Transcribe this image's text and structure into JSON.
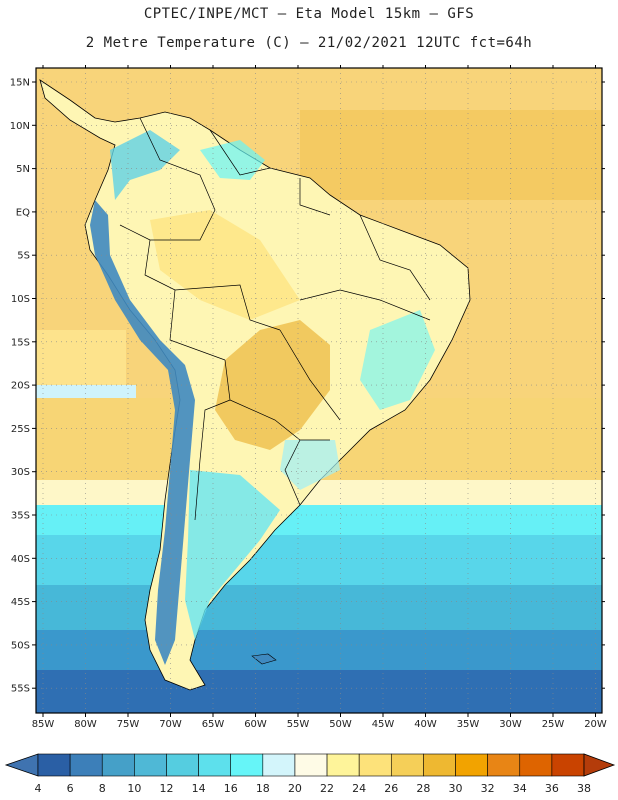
{
  "header": {
    "line1": "CPTEC/INPE/MCT –  Eta Model 15km – GFS",
    "line2": "2 Metre Temperature (C) – 21/02/2021 12UTC fct=64h"
  },
  "lat_labels": [
    "15N",
    "10N",
    "5N",
    "EQ",
    "5S",
    "10S",
    "15S",
    "20S",
    "25S",
    "30S",
    "35S",
    "40S",
    "45S",
    "50S",
    "55S"
  ],
  "lon_labels": [
    "85W",
    "80W",
    "75W",
    "70W",
    "65W",
    "60W",
    "55W",
    "50W",
    "45W",
    "40W",
    "35W",
    "30W",
    "25W",
    "20W"
  ],
  "colorbar": {
    "labels": [
      "4",
      "6",
      "8",
      "10",
      "12",
      "14",
      "16",
      "18",
      "20",
      "22",
      "24",
      "26",
      "28",
      "30",
      "32",
      "34",
      "36",
      "38"
    ],
    "colors": [
      "#2a5fa5",
      "#3c7fb9",
      "#45a0c8",
      "#4fb8d6",
      "#55cde0",
      "#5de0ec",
      "#66f5f8",
      "#d3f5fb",
      "#fefbe6",
      "#fef49a",
      "#fde27a",
      "#f5cf58",
      "#eeb831",
      "#f2a300",
      "#e88515",
      "#de6400",
      "#c94300"
    ],
    "low_color": "#3f73b0",
    "high_color": "#b43c0a"
  },
  "palette": {
    "ocean_warm": "#f8d47a",
    "ocean_warmest": "#f3c75c",
    "land_warm": "#fef6b4",
    "land_hot": "#efc455",
    "andes_cold": "#3f8ac0",
    "andes_mid": "#5fd2e6",
    "ocean_cool": "#58d6ea",
    "ocean_cold": "#3a98cc",
    "ocean_coldest": "#2f6fb3"
  }
}
